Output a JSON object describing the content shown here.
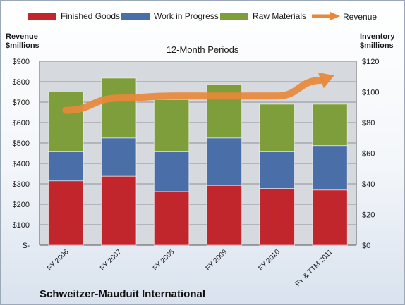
{
  "left_axis_label": [
    "Revenue",
    "$millions"
  ],
  "right_axis_label": [
    "Inventory",
    "$millions"
  ],
  "title": "12-Month Periods",
  "company": "Schweitzer-Mauduit International",
  "colors": {
    "finished_goods": "#c0262b",
    "work_in_progress": "#4a6ea8",
    "raw_materials": "#7e9e3c",
    "revenue": "#e8883a"
  },
  "chart_data": {
    "type": "bar",
    "stacked": true,
    "categories": [
      "FY 2006",
      "FY 2007",
      "FY 2008",
      "FY 2009",
      "FY 2010",
      "FY & TTM 2011"
    ],
    "series": [
      {
        "name": "Finished Goods",
        "axis": "inventory",
        "values": [
          42,
          45,
          35,
          39,
          37,
          36
        ]
      },
      {
        "name": "Work in Progress",
        "axis": "inventory",
        "values": [
          19,
          25,
          26,
          31,
          24,
          29
        ]
      },
      {
        "name": "Raw Materials",
        "axis": "inventory",
        "values": [
          39,
          39,
          34,
          35,
          31,
          27
        ]
      },
      {
        "name": "Revenue",
        "type": "line",
        "axis": "revenue",
        "values": [
          660,
          720,
          730,
          730,
          730,
          830
        ]
      }
    ],
    "left_axis": {
      "min": 0,
      "max": 900,
      "step": 100,
      "ticks": [
        "$-",
        "$100",
        "$200",
        "$300",
        "$400",
        "$500",
        "$600",
        "$700",
        "$800",
        "$900"
      ]
    },
    "right_axis": {
      "min": 0,
      "max": 120,
      "step": 20,
      "ticks": [
        "$0",
        "$20",
        "$40",
        "$60",
        "$80",
        "$100",
        "$120"
      ]
    },
    "legend_position": "top",
    "grid": true
  }
}
